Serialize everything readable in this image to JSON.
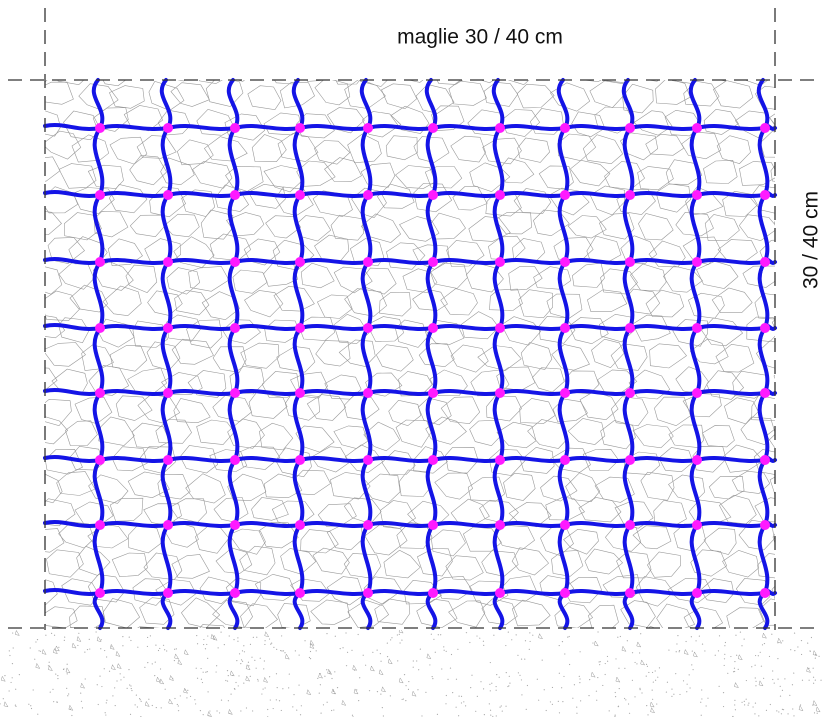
{
  "labels": {
    "top": "maglie 30 / 40 cm",
    "right": "30 / 40 cm"
  }
}
